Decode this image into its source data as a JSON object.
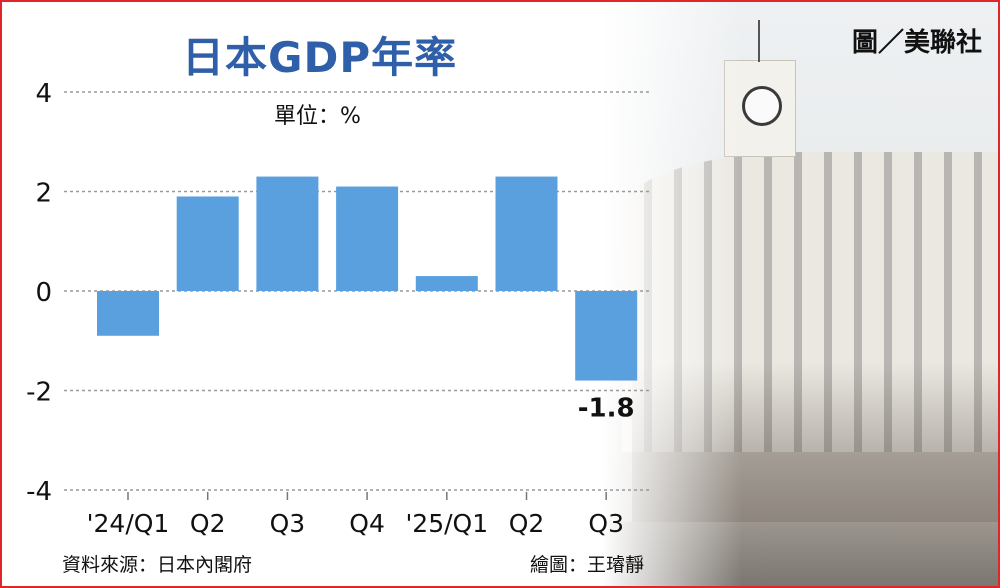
{
  "title": "日本GDP年率",
  "unit_label": "單位：%",
  "source_label": "資料來源：日本內閣府",
  "artist_label": "繪圖：王璿靜",
  "photo_credit": "圖／美聯社",
  "colors": {
    "bar": "#5aa0de",
    "title": "#2e5fa8",
    "border": "#e0262b"
  },
  "chart_data": {
    "type": "bar",
    "categories": [
      "'24/Q1",
      "Q2",
      "Q3",
      "Q4",
      "'25/Q1",
      "Q2",
      "Q3"
    ],
    "values": [
      -0.9,
      1.9,
      2.3,
      2.1,
      0.3,
      2.3,
      -1.8
    ],
    "data_labels": [
      "",
      "",
      "",
      "",
      "",
      "",
      "-1.8"
    ],
    "ylim": [
      -4,
      4
    ],
    "yticks": [
      4,
      2,
      0,
      -2,
      -4
    ],
    "title": "日本GDP年率",
    "xlabel": "",
    "ylabel": "單位：%",
    "grid": true
  }
}
